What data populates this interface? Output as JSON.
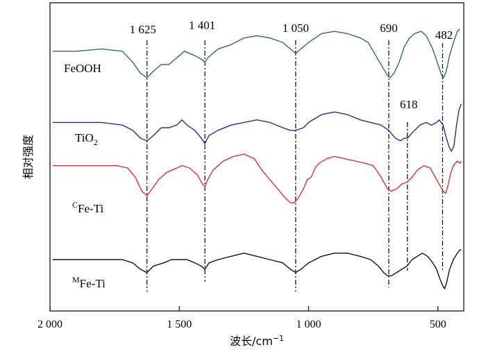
{
  "chart_data": {
    "type": "line",
    "title": "",
    "xlabel": "波长/cm",
    "xlabel_sup": "−1",
    "ylabel": "相对强度",
    "xlim": [
      2000,
      400
    ],
    "x_reversed": true,
    "x_ticks": [
      {
        "value": 2000,
        "label": "2 000"
      },
      {
        "value": 1500,
        "label": "1 500"
      },
      {
        "value": 1000,
        "label": "1 000"
      },
      {
        "value": 500,
        "label": "500"
      }
    ],
    "y_ticks_shown": false,
    "grid": false,
    "reference_lines": [
      {
        "x": 1625,
        "label": "1 625"
      },
      {
        "x": 1401,
        "label": "1 401"
      },
      {
        "x": 1050,
        "label": "1 050"
      },
      {
        "x": 690,
        "label": "690"
      },
      {
        "x": 618,
        "label": "618"
      },
      {
        "x": 482,
        "label": "482"
      }
    ],
    "series": [
      {
        "name": "FeOOH",
        "label_sup_prefix": "",
        "label_main": "FeOOH",
        "label_sub": "",
        "color": "#2e6b68",
        "points": [
          [
            1990,
            0.62
          ],
          [
            1900,
            0.62
          ],
          [
            1800,
            0.63
          ],
          [
            1720,
            0.62
          ],
          [
            1680,
            0.57
          ],
          [
            1650,
            0.52
          ],
          [
            1625,
            0.5
          ],
          [
            1600,
            0.53
          ],
          [
            1570,
            0.56
          ],
          [
            1540,
            0.56
          ],
          [
            1510,
            0.59
          ],
          [
            1480,
            0.62
          ],
          [
            1440,
            0.6
          ],
          [
            1410,
            0.58
          ],
          [
            1401,
            0.57
          ],
          [
            1390,
            0.59
          ],
          [
            1350,
            0.63
          ],
          [
            1300,
            0.65
          ],
          [
            1250,
            0.68
          ],
          [
            1200,
            0.69
          ],
          [
            1150,
            0.68
          ],
          [
            1100,
            0.66
          ],
          [
            1070,
            0.63
          ],
          [
            1050,
            0.61
          ],
          [
            1030,
            0.63
          ],
          [
            1000,
            0.66
          ],
          [
            950,
            0.7
          ],
          [
            900,
            0.71
          ],
          [
            850,
            0.7
          ],
          [
            800,
            0.68
          ],
          [
            770,
            0.66
          ],
          [
            740,
            0.6
          ],
          [
            710,
            0.54
          ],
          [
            695,
            0.51
          ],
          [
            685,
            0.5
          ],
          [
            670,
            0.52
          ],
          [
            650,
            0.57
          ],
          [
            630,
            0.64
          ],
          [
            610,
            0.68
          ],
          [
            590,
            0.7
          ],
          [
            565,
            0.71
          ],
          [
            545,
            0.69
          ],
          [
            520,
            0.63
          ],
          [
            500,
            0.56
          ],
          [
            485,
            0.51
          ],
          [
            478,
            0.5
          ],
          [
            468,
            0.53
          ],
          [
            455,
            0.6
          ],
          [
            440,
            0.66
          ],
          [
            425,
            0.71
          ],
          [
            415,
            0.72
          ]
        ]
      },
      {
        "name": "TiO2",
        "label_sup_prefix": "",
        "label_main": "TiO",
        "label_sub": "2",
        "color": "#2d2b8c",
        "points": [
          [
            1990,
            0.33
          ],
          [
            1900,
            0.33
          ],
          [
            1800,
            0.33
          ],
          [
            1720,
            0.32
          ],
          [
            1680,
            0.3
          ],
          [
            1650,
            0.27
          ],
          [
            1625,
            0.26
          ],
          [
            1600,
            0.28
          ],
          [
            1570,
            0.31
          ],
          [
            1540,
            0.31
          ],
          [
            1510,
            0.32
          ],
          [
            1490,
            0.34
          ],
          [
            1470,
            0.32
          ],
          [
            1440,
            0.3
          ],
          [
            1415,
            0.27
          ],
          [
            1401,
            0.25
          ],
          [
            1385,
            0.28
          ],
          [
            1350,
            0.3
          ],
          [
            1300,
            0.32
          ],
          [
            1250,
            0.33
          ],
          [
            1200,
            0.34
          ],
          [
            1150,
            0.33
          ],
          [
            1100,
            0.31
          ],
          [
            1070,
            0.3
          ],
          [
            1050,
            0.3
          ],
          [
            1020,
            0.31
          ],
          [
            1000,
            0.33
          ],
          [
            950,
            0.36
          ],
          [
            900,
            0.37
          ],
          [
            850,
            0.36
          ],
          [
            800,
            0.34
          ],
          [
            760,
            0.33
          ],
          [
            720,
            0.32
          ],
          [
            690,
            0.3
          ],
          [
            665,
            0.27
          ],
          [
            645,
            0.26
          ],
          [
            630,
            0.27
          ],
          [
            618,
            0.27
          ],
          [
            600,
            0.29
          ],
          [
            570,
            0.32
          ],
          [
            545,
            0.33
          ],
          [
            525,
            0.32
          ],
          [
            505,
            0.33
          ],
          [
            495,
            0.34
          ],
          [
            480,
            0.32
          ],
          [
            470,
            0.28
          ],
          [
            458,
            0.24
          ],
          [
            448,
            0.22
          ],
          [
            438,
            0.24
          ],
          [
            428,
            0.32
          ],
          [
            418,
            0.38
          ],
          [
            410,
            0.4
          ]
        ]
      },
      {
        "name": "CFe-Ti",
        "label_sup_prefix": "C",
        "label_main": "Fe-Ti",
        "label_sub": "",
        "color": "#e03030",
        "points": [
          [
            1990,
            0.52
          ],
          [
            1900,
            0.52
          ],
          [
            1800,
            0.52
          ],
          [
            1740,
            0.52
          ],
          [
            1700,
            0.51
          ],
          [
            1670,
            0.47
          ],
          [
            1645,
            0.41
          ],
          [
            1625,
            0.39
          ],
          [
            1605,
            0.42
          ],
          [
            1580,
            0.46
          ],
          [
            1550,
            0.49
          ],
          [
            1510,
            0.51
          ],
          [
            1490,
            0.52
          ],
          [
            1460,
            0.51
          ],
          [
            1430,
            0.48
          ],
          [
            1410,
            0.44
          ],
          [
            1401,
            0.43
          ],
          [
            1390,
            0.46
          ],
          [
            1370,
            0.5
          ],
          [
            1330,
            0.54
          ],
          [
            1290,
            0.56
          ],
          [
            1250,
            0.57
          ],
          [
            1210,
            0.55
          ],
          [
            1180,
            0.5
          ],
          [
            1150,
            0.46
          ],
          [
            1120,
            0.42
          ],
          [
            1090,
            0.38
          ],
          [
            1070,
            0.36
          ],
          [
            1055,
            0.36
          ],
          [
            1040,
            0.38
          ],
          [
            1020,
            0.42
          ],
          [
            1005,
            0.46
          ],
          [
            990,
            0.47
          ],
          [
            975,
            0.51
          ],
          [
            960,
            0.53
          ],
          [
            930,
            0.55
          ],
          [
            900,
            0.56
          ],
          [
            860,
            0.55
          ],
          [
            820,
            0.54
          ],
          [
            780,
            0.53
          ],
          [
            750,
            0.52
          ],
          [
            725,
            0.48
          ],
          [
            705,
            0.44
          ],
          [
            695,
            0.42
          ],
          [
            680,
            0.41
          ],
          [
            660,
            0.42
          ],
          [
            640,
            0.44
          ],
          [
            618,
            0.45
          ],
          [
            600,
            0.47
          ],
          [
            580,
            0.5
          ],
          [
            555,
            0.52
          ],
          [
            530,
            0.51
          ],
          [
            510,
            0.47
          ],
          [
            495,
            0.44
          ],
          [
            480,
            0.41
          ],
          [
            470,
            0.4
          ],
          [
            462,
            0.43
          ],
          [
            450,
            0.49
          ],
          [
            440,
            0.52
          ],
          [
            425,
            0.54
          ],
          [
            415,
            0.53
          ],
          [
            410,
            0.54
          ]
        ]
      },
      {
        "name": "MFe-Ti",
        "label_sup_prefix": "M",
        "label_main": "Fe-Ti",
        "label_sub": "",
        "color": "#111111",
        "points": [
          [
            1990,
            0.05
          ],
          [
            1900,
            0.05
          ],
          [
            1800,
            0.05
          ],
          [
            1720,
            0.05
          ],
          [
            1680,
            0.04
          ],
          [
            1650,
            0.02
          ],
          [
            1625,
            0.01
          ],
          [
            1600,
            0.03
          ],
          [
            1560,
            0.04
          ],
          [
            1530,
            0.05
          ],
          [
            1500,
            0.05
          ],
          [
            1470,
            0.05
          ],
          [
            1440,
            0.04
          ],
          [
            1415,
            0.03
          ],
          [
            1401,
            0.02
          ],
          [
            1385,
            0.04
          ],
          [
            1350,
            0.05
          ],
          [
            1300,
            0.06
          ],
          [
            1250,
            0.07
          ],
          [
            1200,
            0.06
          ],
          [
            1150,
            0.05
          ],
          [
            1100,
            0.04
          ],
          [
            1070,
            0.02
          ],
          [
            1050,
            0.01
          ],
          [
            1030,
            0.02
          ],
          [
            1000,
            0.04
          ],
          [
            950,
            0.06
          ],
          [
            900,
            0.07
          ],
          [
            850,
            0.07
          ],
          [
            800,
            0.06
          ],
          [
            760,
            0.05
          ],
          [
            730,
            0.03
          ],
          [
            710,
            0.01
          ],
          [
            695,
            0.0
          ],
          [
            680,
            0.0
          ],
          [
            660,
            0.01
          ],
          [
            640,
            0.02
          ],
          [
            620,
            0.03
          ],
          [
            600,
            0.05
          ],
          [
            580,
            0.06
          ],
          [
            560,
            0.07
          ],
          [
            540,
            0.06
          ],
          [
            520,
            0.04
          ],
          [
            505,
            0.02
          ],
          [
            492,
            -0.01
          ],
          [
            482,
            -0.03
          ],
          [
            474,
            -0.04
          ],
          [
            466,
            -0.02
          ],
          [
            455,
            0.02
          ],
          [
            440,
            0.05
          ],
          [
            425,
            0.07
          ],
          [
            415,
            0.08
          ],
          [
            410,
            0.08
          ]
        ]
      }
    ]
  }
}
